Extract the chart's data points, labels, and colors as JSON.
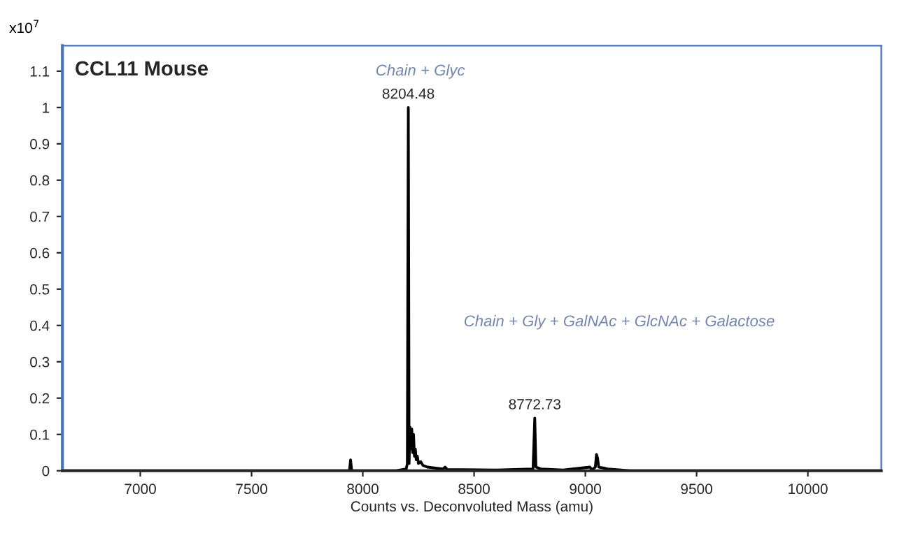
{
  "chart_data": {
    "type": "line",
    "title": "CCL11 Mouse",
    "xlabel": "Counts vs. Deconvoluted Mass (amu)",
    "x": [
      6650,
      7000,
      7940,
      7945,
      7950,
      8150,
      8195,
      8200,
      8204.48,
      8208,
      8212,
      8216,
      8220,
      8224,
      8228,
      8232,
      8236,
      8240,
      8245,
      8250,
      8260,
      8270,
      8290,
      8320,
      8360,
      8370,
      8380,
      8450,
      8600,
      8765,
      8772.73,
      8778,
      8800,
      8900,
      9020,
      9030,
      9045,
      9050,
      9055,
      9060,
      9080,
      9100,
      9200,
      10330
    ],
    "series": [
      {
        "color": "#000000",
        "values": [
          0,
          0,
          0,
          0.03,
          0,
          0,
          0.005,
          0.02,
          1.0,
          0.02,
          0.12,
          0.06,
          0.115,
          0.05,
          0.1,
          0.04,
          0.06,
          0.03,
          0.04,
          0.02,
          0.025,
          0.015,
          0.01,
          0.008,
          0.005,
          0.01,
          0.003,
          0.003,
          0.002,
          0.005,
          0.145,
          0.01,
          0.005,
          0.002,
          0.01,
          0.003,
          0.01,
          0.045,
          0.035,
          0.01,
          0.008,
          0.005,
          0,
          0
        ]
      }
    ],
    "annotations": [
      "x10$^{7}$",
      "Chain + Glyc",
      "Chain + Gly + GalNAc + GlcNAc + Galactose",
      {
        "text": "8204.48",
        "x": 8204.48,
        "y": 1.0
      },
      {
        "text": "8772.73",
        "x": 8772.73,
        "y": 0.145
      }
    ],
    "xlim": [
      6650,
      10330
    ],
    "xticks": [
      7000,
      7500,
      8000,
      8500,
      9000,
      9500,
      10000
    ],
    "ylim": [
      0,
      1.17
    ],
    "yticks": [
      0,
      0.1,
      0.2,
      0.3,
      0.4,
      0.5,
      0.6,
      0.7,
      0.8,
      0.9,
      1,
      1.1
    ],
    "grid": false,
    "legend": false,
    "marker": "none",
    "line_style": "solid"
  }
}
